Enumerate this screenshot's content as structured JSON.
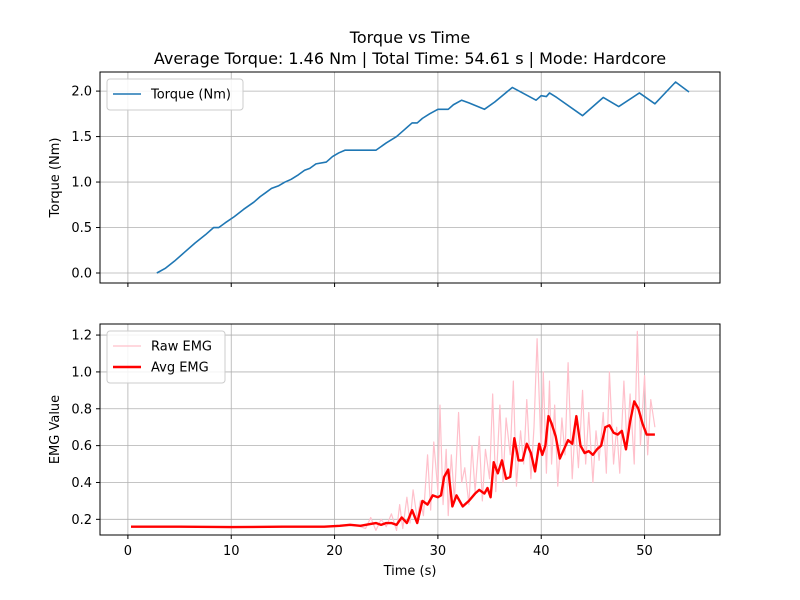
{
  "figure": {
    "title_line1": "Torque vs Time",
    "title_line2": "Average Torque: 1.46 Nm | Total Time: 54.61 s | Mode: Hardcore"
  },
  "chart_data": [
    {
      "type": "line",
      "xlabel": "",
      "ylabel": "Torque (Nm)",
      "xlim": [
        -2.7,
        57.3
      ],
      "ylim": [
        -0.11,
        2.21
      ],
      "xticks": [
        0,
        10,
        20,
        30,
        40,
        50
      ],
      "yticks": [
        0.0,
        0.5,
        1.0,
        1.5,
        2.0
      ],
      "ytick_labels": [
        "0.0",
        "0.5",
        "1.0",
        "1.5",
        "2.0"
      ],
      "show_xtick_labels": false,
      "grid": true,
      "legend": "upper-left",
      "series": [
        {
          "name": "Torque (Nm)",
          "color": "#1f77b4",
          "x": [
            2.8,
            3.6,
            4.5,
            5.5,
            6.5,
            7.5,
            8.3,
            8.8,
            9.4,
            10.3,
            11.2,
            12.2,
            12.8,
            13.3,
            13.9,
            14.6,
            15.2,
            15.8,
            16.5,
            17.1,
            17.6,
            18.2,
            19.2,
            19.8,
            20.4,
            21.0,
            22.0,
            23.0,
            24.0,
            25.0,
            26.0,
            26.8,
            27.5,
            28.0,
            28.5,
            29.2,
            30.0,
            31.0,
            31.5,
            32.3,
            33.0,
            34.5,
            35.5,
            37.2,
            39.5,
            40.0,
            40.5,
            40.8,
            41.5,
            44.0,
            46.0,
            47.5,
            49.5,
            51.0,
            53.0,
            54.3
          ],
          "y": [
            0.0,
            0.05,
            0.13,
            0.23,
            0.33,
            0.42,
            0.5,
            0.5,
            0.55,
            0.62,
            0.7,
            0.78,
            0.84,
            0.88,
            0.93,
            0.96,
            1.0,
            1.03,
            1.08,
            1.13,
            1.15,
            1.2,
            1.22,
            1.28,
            1.32,
            1.35,
            1.35,
            1.35,
            1.35,
            1.43,
            1.5,
            1.58,
            1.65,
            1.65,
            1.7,
            1.75,
            1.8,
            1.8,
            1.85,
            1.9,
            1.87,
            1.8,
            1.88,
            2.04,
            1.9,
            1.95,
            1.94,
            1.98,
            1.93,
            1.73,
            1.93,
            1.83,
            1.98,
            1.86,
            2.1,
            1.99
          ]
        }
      ]
    },
    {
      "type": "line",
      "xlabel": "Time (s)",
      "ylabel": "EMG Value",
      "xlim": [
        -2.7,
        57.3
      ],
      "ylim": [
        0.115,
        1.26
      ],
      "xticks": [
        0,
        10,
        20,
        30,
        40,
        50
      ],
      "yticks": [
        0.2,
        0.4,
        0.6,
        0.8,
        1.0,
        1.2
      ],
      "ytick_labels": [
        "0.2",
        "0.4",
        "0.6",
        "0.8",
        "1.0",
        "1.2"
      ],
      "grid": true,
      "legend": "upper-left",
      "series": [
        {
          "name": "Raw EMG",
          "color": "#ffc0cb",
          "x": [
            0.3,
            5.0,
            10.0,
            15.0,
            20.0,
            22.0,
            23.0,
            23.5,
            24.0,
            24.5,
            25.0,
            25.5,
            26.0,
            26.3,
            26.6,
            27.0,
            27.3,
            27.6,
            28.0,
            28.3,
            28.6,
            29.0,
            29.3,
            29.6,
            30.0,
            30.2,
            30.5,
            30.8,
            31.0,
            31.3,
            31.6,
            32.0,
            32.3,
            32.6,
            33.0,
            33.3,
            33.6,
            34.0,
            34.3,
            34.6,
            35.0,
            35.3,
            35.6,
            36.0,
            36.3,
            36.6,
            37.0,
            37.3,
            37.6,
            38.0,
            38.3,
            38.6,
            39.0,
            39.3,
            39.6,
            40.0,
            40.2,
            40.5,
            40.8,
            41.0,
            41.3,
            41.6,
            42.0,
            42.3,
            42.6,
            43.0,
            43.3,
            43.6,
            44.0,
            44.3,
            44.6,
            45.0,
            45.3,
            45.6,
            46.0,
            46.3,
            46.6,
            47.0,
            47.3,
            47.6,
            48.0,
            48.3,
            48.6,
            49.0,
            49.3,
            49.6,
            50.0,
            50.3,
            50.6,
            51.0
          ],
          "y": [
            0.16,
            0.16,
            0.155,
            0.16,
            0.16,
            0.17,
            0.15,
            0.21,
            0.14,
            0.2,
            0.16,
            0.23,
            0.14,
            0.28,
            0.15,
            0.32,
            0.18,
            0.36,
            0.2,
            0.3,
            0.22,
            0.55,
            0.25,
            0.62,
            0.35,
            0.82,
            0.28,
            0.58,
            0.22,
            0.55,
            0.3,
            0.78,
            0.4,
            0.48,
            0.28,
            0.6,
            0.35,
            0.65,
            0.3,
            0.58,
            0.42,
            0.88,
            0.35,
            0.82,
            0.4,
            0.75,
            0.55,
            0.95,
            0.38,
            0.68,
            0.5,
            0.85,
            0.42,
            0.7,
            1.18,
            0.55,
            1.0,
            0.45,
            0.95,
            0.5,
            0.82,
            0.38,
            0.75,
            0.55,
            1.05,
            0.42,
            0.72,
            0.48,
            0.9,
            0.5,
            0.78,
            0.4,
            0.68,
            0.52,
            0.78,
            0.45,
            1.0,
            0.5,
            0.7,
            0.45,
            0.95,
            0.6,
            0.88,
            0.5,
            1.22,
            0.6,
            0.98,
            0.55,
            0.85,
            0.7
          ]
        },
        {
          "name": "Avg EMG",
          "color": "#ff0000",
          "x": [
            0.3,
            5.0,
            10.0,
            15.0,
            19.0,
            20.5,
            21.5,
            22.5,
            23.5,
            24.0,
            24.5,
            25.0,
            25.5,
            26.0,
            26.5,
            27.0,
            27.5,
            28.0,
            28.5,
            29.0,
            29.5,
            30.0,
            30.3,
            30.6,
            31.0,
            31.4,
            31.8,
            32.4,
            33.0,
            33.6,
            34.0,
            34.5,
            34.8,
            35.1,
            35.4,
            35.8,
            36.2,
            36.6,
            37.0,
            37.4,
            37.8,
            38.2,
            38.6,
            39.0,
            39.4,
            39.8,
            40.1,
            40.4,
            40.7,
            41.0,
            41.4,
            41.8,
            42.2,
            42.6,
            43.0,
            43.4,
            43.8,
            44.2,
            44.6,
            45.0,
            45.4,
            45.8,
            46.2,
            46.6,
            47.0,
            47.4,
            47.8,
            48.2,
            48.6,
            49.0,
            49.4,
            49.8,
            50.2,
            50.6,
            51.0
          ],
          "y": [
            0.16,
            0.16,
            0.158,
            0.16,
            0.16,
            0.165,
            0.17,
            0.165,
            0.175,
            0.18,
            0.17,
            0.18,
            0.18,
            0.17,
            0.21,
            0.18,
            0.25,
            0.18,
            0.3,
            0.28,
            0.33,
            0.32,
            0.33,
            0.43,
            0.47,
            0.27,
            0.33,
            0.27,
            0.3,
            0.34,
            0.36,
            0.34,
            0.37,
            0.32,
            0.51,
            0.45,
            0.52,
            0.42,
            0.43,
            0.64,
            0.52,
            0.52,
            0.61,
            0.56,
            0.46,
            0.61,
            0.55,
            0.6,
            0.76,
            0.72,
            0.65,
            0.53,
            0.58,
            0.63,
            0.61,
            0.76,
            0.6,
            0.56,
            0.57,
            0.55,
            0.58,
            0.6,
            0.7,
            0.71,
            0.67,
            0.66,
            0.68,
            0.58,
            0.73,
            0.84,
            0.8,
            0.72,
            0.66,
            0.66,
            0.66
          ]
        }
      ]
    }
  ]
}
